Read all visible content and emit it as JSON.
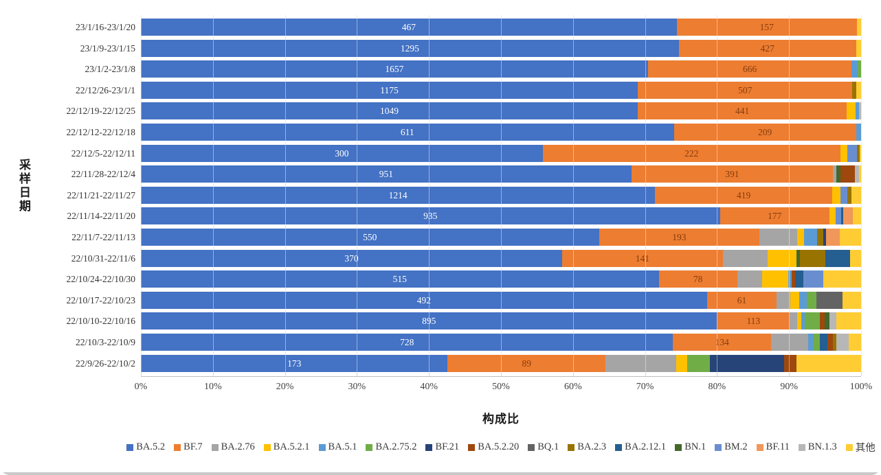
{
  "chart_data": {
    "type": "bar",
    "subtype": "horizontal-100pct-stacked",
    "title": "",
    "xlabel": "构成比",
    "ylabel": "采样日期",
    "xlim": [
      0,
      100
    ],
    "x_ticks": [
      "0%",
      "10%",
      "20%",
      "30%",
      "40%",
      "50%",
      "60%",
      "70%",
      "80%",
      "90%",
      "100%"
    ],
    "grid": true,
    "legend_position": "bottom",
    "series_names": [
      "BA.5.2",
      "BF.7",
      "BA.2.76",
      "BA.5.2.1",
      "BA.5.1",
      "BA.2.75.2",
      "BF.21",
      "BA.5.2.20",
      "BQ.1",
      "BA.2.3",
      "BA.2.12.1",
      "BN.1",
      "BM.2",
      "BF.11",
      "BN.1.3",
      "其他"
    ],
    "palette": {
      "BA.5.2": "#4472C4",
      "BF.7": "#ED7D31",
      "BA.2.76": "#A5A5A5",
      "BA.5.2.1": "#FFC000",
      "BA.5.1": "#5B9BD5",
      "BA.2.75.2": "#70AD47",
      "BF.21": "#264478",
      "BA.5.2.20": "#9E480E",
      "BQ.1": "#636363",
      "BA.2.3": "#997300",
      "BA.2.12.1": "#255E91",
      "BN.1": "#43682B",
      "BM.2": "#698ED0",
      "BF.11": "#F1975A",
      "BN.1.3": "#B7B7B7",
      "其他": "#FFCD33"
    },
    "value_label_colors": {
      "BA.5.2": "#FFFFFF",
      "BF.7": "#843C0C"
    },
    "rows": [
      {
        "category": "23/1/16-23/1/20",
        "segments": [
          {
            "name": "BA.5.2",
            "pct": 74.4,
            "label": "467"
          },
          {
            "name": "BF.7",
            "pct": 25.0,
            "label": "157"
          },
          {
            "name": "其他",
            "pct": 0.6
          }
        ]
      },
      {
        "category": "23/1/9-23/1/15",
        "segments": [
          {
            "name": "BA.5.2",
            "pct": 74.7,
            "label": "1295"
          },
          {
            "name": "BF.7",
            "pct": 24.6,
            "label": "427"
          },
          {
            "name": "其他",
            "pct": 0.7
          }
        ]
      },
      {
        "category": "23/1/2-23/1/8",
        "segments": [
          {
            "name": "BA.5.2",
            "pct": 70.4,
            "label": "1657"
          },
          {
            "name": "BF.7",
            "pct": 28.3,
            "label": "666"
          },
          {
            "name": "BA.5.1",
            "pct": 0.8
          },
          {
            "name": "BA.2.75.2",
            "pct": 0.5
          }
        ]
      },
      {
        "category": "22/12/26-23/1/1",
        "segments": [
          {
            "name": "BA.5.2",
            "pct": 69.0,
            "label": "1175"
          },
          {
            "name": "BF.7",
            "pct": 29.8,
            "label": "507"
          },
          {
            "name": "BA.2.3",
            "pct": 0.5
          },
          {
            "name": "其他",
            "pct": 0.7
          }
        ]
      },
      {
        "category": "22/12/19-22/12/25",
        "segments": [
          {
            "name": "BA.5.2",
            "pct": 69.0,
            "label": "1049"
          },
          {
            "name": "BF.7",
            "pct": 29.0,
            "label": "441"
          },
          {
            "name": "BA.5.2.1",
            "pct": 1.2
          },
          {
            "name": "BA.5.1",
            "pct": 0.5
          },
          {
            "name": "BN.1.3",
            "pct": 0.3
          }
        ]
      },
      {
        "category": "22/12/12-22/12/18",
        "segments": [
          {
            "name": "BA.5.2",
            "pct": 74.0,
            "label": "611"
          },
          {
            "name": "BF.7",
            "pct": 25.3,
            "label": "209"
          },
          {
            "name": "BA.5.1",
            "pct": 0.7
          }
        ]
      },
      {
        "category": "22/12/5-22/12/11",
        "segments": [
          {
            "name": "BA.5.2",
            "pct": 55.8,
            "label": "300"
          },
          {
            "name": "BF.7",
            "pct": 41.3,
            "label": "222"
          },
          {
            "name": "BA.5.2.1",
            "pct": 1.0
          },
          {
            "name": "BM.2",
            "pct": 1.3
          },
          {
            "name": "BA.2.3",
            "pct": 0.4
          },
          {
            "name": "其他",
            "pct": 0.2
          }
        ]
      },
      {
        "category": "22/11/28-22/12/4",
        "segments": [
          {
            "name": "BA.5.2",
            "pct": 68.1,
            "label": "951"
          },
          {
            "name": "BF.7",
            "pct": 28.0,
            "label": "391"
          },
          {
            "name": "BA.2.76",
            "pct": 0.5
          },
          {
            "name": "BN.1",
            "pct": 0.5
          },
          {
            "name": "BA.5.2.20",
            "pct": 2.0
          },
          {
            "name": "BN.1.3",
            "pct": 0.6
          },
          {
            "name": "其他",
            "pct": 0.3
          }
        ]
      },
      {
        "category": "22/11/21-22/11/27",
        "segments": [
          {
            "name": "BA.5.2",
            "pct": 71.4,
            "label": "1214"
          },
          {
            "name": "BF.7",
            "pct": 24.6,
            "label": "419"
          },
          {
            "name": "BA.5.2.1",
            "pct": 1.1
          },
          {
            "name": "BM.2",
            "pct": 1.0
          },
          {
            "name": "BA.2.3",
            "pct": 0.6
          },
          {
            "name": "其他",
            "pct": 1.3
          }
        ]
      },
      {
        "category": "22/11/14-22/11/20",
        "segments": [
          {
            "name": "BA.5.2",
            "pct": 80.4,
            "label": "935"
          },
          {
            "name": "BF.7",
            "pct": 15.2,
            "label": "177"
          },
          {
            "name": "BA.5.2.1",
            "pct": 0.9
          },
          {
            "name": "BM.2",
            "pct": 0.7
          },
          {
            "name": "BA.2.12.1",
            "pct": 0.3
          },
          {
            "name": "BF.11",
            "pct": 1.4
          },
          {
            "name": "其他",
            "pct": 1.1
          }
        ]
      },
      {
        "category": "22/11/7-22/11/13",
        "segments": [
          {
            "name": "BA.5.2",
            "pct": 63.6,
            "label": "550"
          },
          {
            "name": "BF.7",
            "pct": 22.3,
            "label": "193"
          },
          {
            "name": "BA.2.76",
            "pct": 5.2
          },
          {
            "name": "BA.5.2.1",
            "pct": 1.0
          },
          {
            "name": "BA.5.1",
            "pct": 1.8
          },
          {
            "name": "BA.2.3",
            "pct": 0.9
          },
          {
            "name": "BF.21",
            "pct": 0.3
          },
          {
            "name": "BF.11",
            "pct": 1.9
          },
          {
            "name": "其他",
            "pct": 3.0
          }
        ]
      },
      {
        "category": "22/10/31-22/11/6",
        "segments": [
          {
            "name": "BA.5.2",
            "pct": 58.5,
            "label": "370"
          },
          {
            "name": "BF.7",
            "pct": 22.3,
            "label": "141"
          },
          {
            "name": "BA.2.76",
            "pct": 6.2
          },
          {
            "name": "BA.5.2.1",
            "pct": 4.0
          },
          {
            "name": "BN.1",
            "pct": 0.5
          },
          {
            "name": "BA.2.3",
            "pct": 3.5
          },
          {
            "name": "BA.2.12.1",
            "pct": 3.5
          },
          {
            "name": "其他",
            "pct": 1.5
          }
        ]
      },
      {
        "category": "22/10/24-22/10/30",
        "segments": [
          {
            "name": "BA.5.2",
            "pct": 71.9,
            "label": "515"
          },
          {
            "name": "BF.7",
            "pct": 10.9,
            "label": "78"
          },
          {
            "name": "BA.2.76",
            "pct": 3.5
          },
          {
            "name": "BA.5.2.1",
            "pct": 3.6
          },
          {
            "name": "BA.5.1",
            "pct": 0.5
          },
          {
            "name": "BA.5.2.20",
            "pct": 0.4
          },
          {
            "name": "BA.2.12.1",
            "pct": 1.2
          },
          {
            "name": "BM.2",
            "pct": 2.8
          },
          {
            "name": "其他",
            "pct": 5.2
          }
        ]
      },
      {
        "category": "22/10/17-22/10/23",
        "segments": [
          {
            "name": "BA.5.2",
            "pct": 78.6,
            "label": "492"
          },
          {
            "name": "BF.7",
            "pct": 9.7,
            "label": "61"
          },
          {
            "name": "BA.2.76",
            "pct": 1.9
          },
          {
            "name": "BA.5.2.1",
            "pct": 1.2
          },
          {
            "name": "BA.5.1",
            "pct": 1.1
          },
          {
            "name": "BA.2.75.2",
            "pct": 1.3
          },
          {
            "name": "BQ.1",
            "pct": 3.6
          },
          {
            "name": "其他",
            "pct": 2.6
          }
        ]
      },
      {
        "category": "22/10/10-22/10/16",
        "segments": [
          {
            "name": "BA.5.2",
            "pct": 80.0,
            "label": "895"
          },
          {
            "name": "BF.7",
            "pct": 10.1,
            "label": "113"
          },
          {
            "name": "BA.2.76",
            "pct": 1.0
          },
          {
            "name": "BA.5.2.1",
            "pct": 0.6
          },
          {
            "name": "BA.5.1",
            "pct": 0.5
          },
          {
            "name": "BA.2.75.2",
            "pct": 2.1
          },
          {
            "name": "BA.5.2.20",
            "pct": 0.6
          },
          {
            "name": "BN.1",
            "pct": 0.7
          },
          {
            "name": "BN.1.3",
            "pct": 1.0
          },
          {
            "name": "其他",
            "pct": 3.4
          }
        ]
      },
      {
        "category": "22/10/3-22/10/9",
        "segments": [
          {
            "name": "BA.5.2",
            "pct": 73.9,
            "label": "728"
          },
          {
            "name": "BF.7",
            "pct": 13.6,
            "label": "134"
          },
          {
            "name": "BA.2.76",
            "pct": 5.2
          },
          {
            "name": "BA.5.1",
            "pct": 0.6
          },
          {
            "name": "BA.2.75.2",
            "pct": 1.0
          },
          {
            "name": "BA.2.12.1",
            "pct": 1.0
          },
          {
            "name": "BA.5.2.20",
            "pct": 0.8
          },
          {
            "name": "BA.2.3",
            "pct": 0.5
          },
          {
            "name": "BN.1.3",
            "pct": 1.7
          },
          {
            "name": "其他",
            "pct": 1.7
          }
        ]
      },
      {
        "category": "22/9/26-22/10/2",
        "segments": [
          {
            "name": "BA.5.2",
            "pct": 42.6,
            "label": "173"
          },
          {
            "name": "BF.7",
            "pct": 21.9,
            "label": "89"
          },
          {
            "name": "BA.2.76",
            "pct": 9.8
          },
          {
            "name": "BA.5.2.1",
            "pct": 1.6
          },
          {
            "name": "BA.2.75.2",
            "pct": 3.1
          },
          {
            "name": "BF.21",
            "pct": 10.3
          },
          {
            "name": "BA.5.2.20",
            "pct": 1.7
          },
          {
            "name": "其他",
            "pct": 9.0
          }
        ]
      }
    ]
  }
}
